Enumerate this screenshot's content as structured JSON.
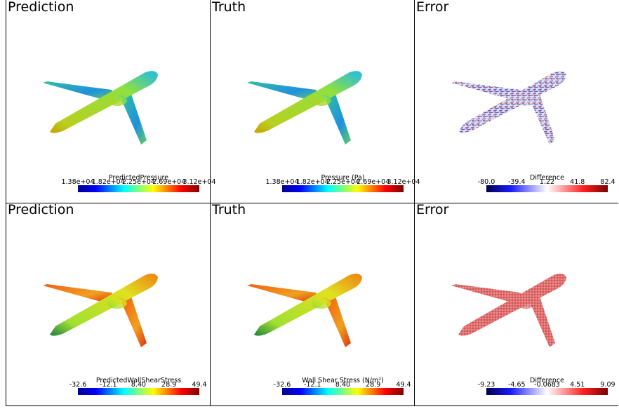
{
  "panels": [
    {
      "title": "Prediction",
      "colorbar": {
        "label": "PredictedPressure",
        "ticks": [
          "1.38e+04",
          "1.82e+04",
          "2.25e+04",
          "2.69e+04",
          "3.12e+04"
        ]
      }
    },
    {
      "title": "Truth",
      "colorbar": {
        "label": "Pressure (Pa)",
        "ticks": [
          "1.38e+04",
          "1.82e+04",
          "2.25e+04",
          "2.69e+04",
          "3.12e+04"
        ]
      }
    },
    {
      "title": "Error",
      "colorbar": {
        "label": "Difference",
        "ticks": [
          "-80.0",
          "-39.4",
          "1.22",
          "41.8",
          "82.4"
        ]
      }
    },
    {
      "title": "Prediction",
      "colorbar": {
        "label": "PredictedWallShearStress",
        "ticks": [
          "-32.6",
          "-12.1",
          "8.40",
          "28.9",
          "49.4"
        ]
      }
    },
    {
      "title": "Truth",
      "colorbar": {
        "label": "Wall Shear Stress (N/m²)",
        "ticks": [
          "-32.6",
          "-12.1",
          "8.40",
          "28.9",
          "49.4"
        ]
      }
    },
    {
      "title": "Error",
      "colorbar": {
        "label": "Difference",
        "ticks": [
          "-9.23",
          "-4.65",
          "-0.0683",
          "4.51",
          "9.09"
        ]
      }
    }
  ]
}
